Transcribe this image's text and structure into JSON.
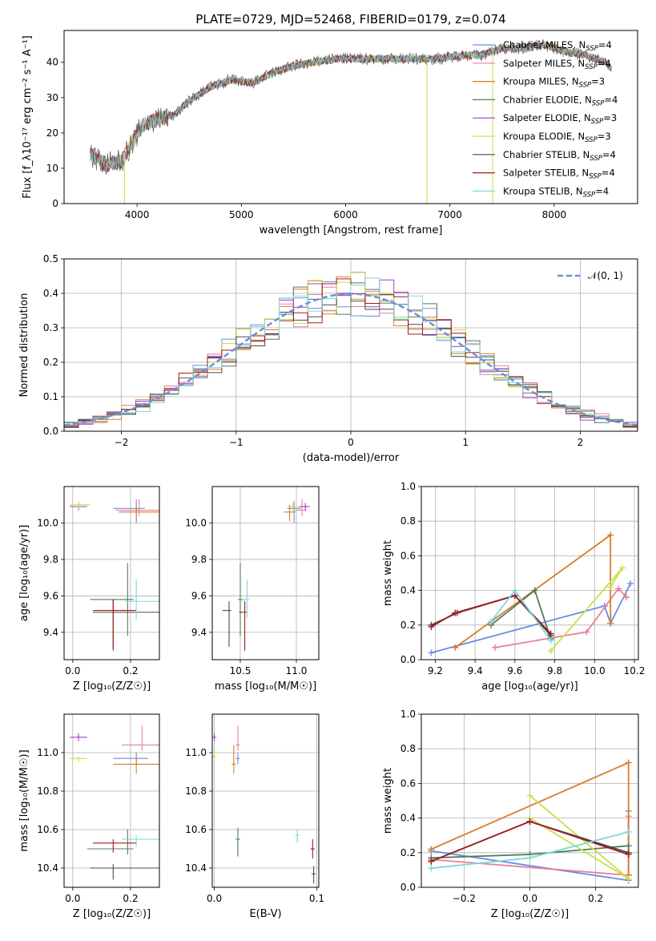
{
  "title": "PLATE=0729, MJD=52468, FIBERID=0179, z=0.074",
  "colors": {
    "Chabrier MILES": "#6a8ee0",
    "Salpeter MILES": "#e87f9a",
    "Kroupa MILES": "#d97d2a",
    "Chabrier ELODIE": "#4f7d5a",
    "Salpeter ELODIE": "#a23bc8",
    "Kroupa ELODIE": "#c8e04a",
    "Chabrier STELIB": "#4a4a4a",
    "Salpeter STELIB": "#a01c1c",
    "Kroupa STELIB": "#7fd8dc"
  },
  "chart_data": [
    {
      "id": "spectrum",
      "type": "line",
      "xlabel": "wavelength [Angstrom, rest frame]",
      "ylabel": "Flux [f_λ10⁻¹⁷ erg cm⁻² s⁻¹ A⁻¹]",
      "xlim": [
        3300,
        8800
      ],
      "ylim": [
        0,
        49
      ],
      "xticks": [
        4000,
        5000,
        6000,
        7000,
        8000
      ],
      "yticks": [
        0,
        10,
        20,
        30,
        40
      ],
      "grid": false,
      "legend_position": "right",
      "legend": [
        {
          "label": "Chabrier MILES, N",
          "sub": "SSP",
          "suffix": "=4"
        },
        {
          "label": "Salpeter MILES, N",
          "sub": "SSP",
          "suffix": "=4"
        },
        {
          "label": "Kroupa MILES, N",
          "sub": "SSP",
          "suffix": "=3"
        },
        {
          "label": "Chabrier ELODIE, N",
          "sub": "SSP",
          "suffix": "=4"
        },
        {
          "label": "Salpeter ELODIE, N",
          "sub": "SSP",
          "suffix": "=3"
        },
        {
          "label": "Kroupa ELODIE, N",
          "sub": "SSP",
          "suffix": "=3"
        },
        {
          "label": "Chabrier STELIB, N",
          "sub": "SSP",
          "suffix": "=4"
        },
        {
          "label": "Salpeter STELIB, N",
          "sub": "SSP",
          "suffix": "=4"
        },
        {
          "label": "Kroupa STELIB, N",
          "sub": "SSP",
          "suffix": "=4"
        }
      ],
      "continuum": [
        [
          3550,
          14
        ],
        [
          3700,
          11
        ],
        [
          3850,
          12
        ],
        [
          3950,
          17
        ],
        [
          4050,
          22
        ],
        [
          4200,
          24
        ],
        [
          4350,
          25
        ],
        [
          4500,
          29
        ],
        [
          4700,
          33
        ],
        [
          4900,
          35
        ],
        [
          5100,
          34
        ],
        [
          5300,
          37
        ],
        [
          5500,
          39
        ],
        [
          5700,
          40
        ],
        [
          5900,
          41
        ],
        [
          6100,
          41
        ],
        [
          6300,
          41
        ],
        [
          6500,
          41
        ],
        [
          6700,
          41
        ],
        [
          6900,
          41
        ],
        [
          7100,
          42
        ],
        [
          7300,
          42
        ],
        [
          7500,
          44
        ],
        [
          7700,
          44
        ],
        [
          7900,
          45
        ],
        [
          8100,
          43
        ],
        [
          8300,
          42
        ],
        [
          8500,
          40
        ],
        [
          8550,
          38
        ]
      ],
      "spikes": [
        [
          3880,
          0
        ],
        [
          6780,
          0
        ],
        [
          7410,
          0
        ]
      ]
    },
    {
      "id": "residuals",
      "type": "histogram",
      "xlabel": "(data-model)/error",
      "ylabel": "Normed distribution",
      "xlim": [
        -2.5,
        2.5
      ],
      "ylim": [
        0,
        0.5
      ],
      "xticks": [
        -2,
        -1,
        0,
        1,
        2
      ],
      "yticks": [
        0.0,
        0.1,
        0.2,
        0.3,
        0.4,
        0.5
      ],
      "grid": true,
      "legend_position": "top-right",
      "legend_label": "𝒩(0, 1)",
      "bin_width": 0.125,
      "reference": {
        "type": "normal",
        "mean": 0,
        "sigma": 1
      }
    },
    {
      "id": "age-vs-z",
      "type": "scatter",
      "xlabel": "Z [log₁₀(Z/Z☉)]",
      "ylabel": "age  [log₁₀(age/yr)]",
      "xlim": [
        -0.03,
        0.3
      ],
      "ylim": [
        9.25,
        10.2
      ],
      "xticks": [
        0.0,
        0.2
      ],
      "yticks": [
        9.4,
        9.6,
        9.8,
        10.0
      ],
      "grid": true,
      "points": [
        {
          "series": "Chabrier MILES",
          "x": 0.22,
          "xerr": [
            0.08,
            0.03
          ],
          "y": 10.08,
          "yerr": [
            0.08,
            0.05
          ]
        },
        {
          "series": "Salpeter MILES",
          "x": 0.23,
          "xerr": [
            0.08,
            0.07
          ],
          "y": 10.07,
          "yerr": [
            0.03,
            0.06
          ]
        },
        {
          "series": "Kroupa MILES",
          "x": 0.22,
          "xerr": [
            0.06,
            0.08
          ],
          "y": 10.06,
          "yerr": [
            0.05,
            0.04
          ]
        },
        {
          "series": "Chabrier ELODIE",
          "x": 0.19,
          "xerr": [
            0.13,
            0.02
          ],
          "y": 9.58,
          "yerr": [
            0.2,
            0.2
          ]
        },
        {
          "series": "Salpeter ELODIE",
          "x": 0.02,
          "xerr": [
            0.03,
            0.03
          ],
          "y": 10.09,
          "yerr": [
            0.02,
            0.02
          ]
        },
        {
          "series": "Kroupa ELODIE",
          "x": 0.02,
          "xerr": [
            0.03,
            0.04
          ],
          "y": 10.1,
          "yerr": [
            0.02,
            0.02
          ]
        },
        {
          "series": "Chabrier STELIB",
          "x": 0.14,
          "xerr": [
            0.07,
            0.16
          ],
          "y": 9.51,
          "yerr": [
            0.2,
            0.07
          ]
        },
        {
          "series": "Salpeter STELIB",
          "x": 0.14,
          "xerr": [
            0.07,
            0.08
          ],
          "y": 9.52,
          "yerr": [
            0.22,
            0.06
          ]
        },
        {
          "series": "Kroupa STELIB",
          "x": 0.22,
          "xerr": [
            0.04,
            0.08
          ],
          "y": 9.57,
          "yerr": [
            0.1,
            0.12
          ]
        }
      ]
    },
    {
      "id": "age-vs-mass",
      "type": "scatter",
      "xlabel": "mass [log₁₀(M/M☉)]",
      "ylabel": "",
      "xlim": [
        10.25,
        11.2
      ],
      "ylim": [
        9.25,
        10.2
      ],
      "xticks": [
        10.5,
        11.0
      ],
      "yticks": [
        9.4,
        9.6,
        9.8,
        10.0
      ],
      "grid": true,
      "points": [
        {
          "series": "Chabrier MILES",
          "x": 10.98,
          "xerr": [
            0.06,
            0.06
          ],
          "y": 10.08,
          "yerr": [
            0.08,
            0.04
          ]
        },
        {
          "series": "Salpeter MILES",
          "x": 11.05,
          "xerr": [
            0.06,
            0.04
          ],
          "y": 10.07,
          "yerr": [
            0.03,
            0.06
          ]
        },
        {
          "series": "Kroupa MILES",
          "x": 10.94,
          "xerr": [
            0.05,
            0.05
          ],
          "y": 10.06,
          "yerr": [
            0.05,
            0.04
          ]
        },
        {
          "series": "Chabrier ELODIE",
          "x": 10.5,
          "xerr": [
            0.02,
            0.06
          ],
          "y": 9.58,
          "yerr": [
            0.2,
            0.2
          ]
        },
        {
          "series": "Salpeter ELODIE",
          "x": 11.08,
          "xerr": [
            0.06,
            0.04
          ],
          "y": 10.09,
          "yerr": [
            0.02,
            0.02
          ]
        },
        {
          "series": "Kroupa ELODIE",
          "x": 10.97,
          "xerr": [
            0.05,
            0.04
          ],
          "y": 10.09,
          "yerr": [
            0.02,
            0.02
          ]
        },
        {
          "series": "Chabrier STELIB",
          "x": 10.4,
          "xerr": [
            0.06,
            0.02
          ],
          "y": 9.52,
          "yerr": [
            0.2,
            0.05
          ]
        },
        {
          "series": "Salpeter STELIB",
          "x": 10.54,
          "xerr": [
            0.05,
            0.02
          ],
          "y": 9.51,
          "yerr": [
            0.21,
            0.06
          ]
        },
        {
          "series": "Kroupa STELIB",
          "x": 10.56,
          "xerr": [
            0.04,
            0.02
          ],
          "y": 9.58,
          "yerr": [
            0.1,
            0.11
          ]
        }
      ]
    },
    {
      "id": "weight-vs-age",
      "type": "line",
      "xlabel": "age  [log₁₀(age/yr)]",
      "ylabel": "mass weight",
      "xlim": [
        9.13,
        10.22
      ],
      "ylim": [
        0,
        1.0
      ],
      "xticks": [
        9.2,
        9.4,
        9.6,
        9.8,
        10.0,
        10.2
      ],
      "yticks": [
        0.0,
        0.2,
        0.4,
        0.6,
        0.8,
        1.0
      ],
      "grid": true,
      "series": [
        {
          "name": "Chabrier MILES",
          "points": [
            [
              9.18,
              0.04
            ],
            [
              10.05,
              0.31
            ],
            [
              10.08,
              0.21
            ],
            [
              10.18,
              0.44
            ]
          ]
        },
        {
          "name": "Salpeter MILES",
          "points": [
            [
              9.5,
              0.07
            ],
            [
              9.96,
              0.16
            ],
            [
              10.12,
              0.41
            ],
            [
              10.16,
              0.36
            ]
          ]
        },
        {
          "name": "Kroupa MILES",
          "points": [
            [
              9.3,
              0.07
            ],
            [
              10.08,
              0.72
            ],
            [
              10.08,
              0.21
            ]
          ]
        },
        {
          "name": "Chabrier ELODIE",
          "points": [
            [
              9.48,
              0.2
            ],
            [
              9.7,
              0.4
            ],
            [
              9.78,
              0.12
            ]
          ]
        },
        {
          "name": "Kroupa ELODIE",
          "points": [
            [
              9.78,
              0.05
            ],
            [
              10.14,
              0.53
            ],
            [
              10.08,
              0.42
            ]
          ]
        },
        {
          "name": "Chabrier STELIB",
          "points": [
            [
              9.18,
              0.2
            ],
            [
              9.31,
              0.27
            ],
            [
              9.6,
              0.37
            ],
            [
              9.78,
              0.14
            ]
          ]
        },
        {
          "name": "Salpeter STELIB",
          "points": [
            [
              9.18,
              0.19
            ],
            [
              9.3,
              0.27
            ],
            [
              9.6,
              0.37
            ],
            [
              9.78,
              0.15
            ]
          ]
        },
        {
          "name": "Kroupa STELIB",
          "points": [
            [
              9.48,
              0.22
            ],
            [
              9.6,
              0.4
            ],
            [
              9.78,
              0.11
            ]
          ]
        }
      ]
    },
    {
      "id": "mass-vs-z",
      "type": "scatter",
      "xlabel": "Z [log₁₀(Z/Z☉)]",
      "ylabel": "mass [log₁₀(M/M☉)]",
      "xlim": [
        -0.03,
        0.3
      ],
      "ylim": [
        10.3,
        11.2
      ],
      "xticks": [
        0.0,
        0.2
      ],
      "yticks": [
        10.4,
        10.6,
        10.8,
        11.0
      ],
      "grid": true,
      "points": [
        {
          "series": "Chabrier MILES",
          "x": 0.22,
          "xerr": [
            0.08,
            0.04
          ],
          "y": 10.97,
          "yerr": [
            0.03,
            0.03
          ]
        },
        {
          "series": "Salpeter MILES",
          "x": 0.24,
          "xerr": [
            0.07,
            0.06
          ],
          "y": 11.04,
          "yerr": [
            0.03,
            0.1
          ]
        },
        {
          "series": "Kroupa MILES",
          "x": 0.22,
          "xerr": [
            0.08,
            0.1
          ],
          "y": 10.94,
          "yerr": [
            0.05,
            0.04
          ]
        },
        {
          "series": "Chabrier ELODIE",
          "x": 0.19,
          "xerr": [
            0.14,
            0.02
          ],
          "y": 10.5,
          "yerr": [
            0.03,
            0.1
          ]
        },
        {
          "series": "Salpeter ELODIE",
          "x": 0.02,
          "xerr": [
            0.03,
            0.03
          ],
          "y": 11.08,
          "yerr": [
            0.02,
            0.02
          ]
        },
        {
          "series": "Kroupa ELODIE",
          "x": 0.02,
          "xerr": [
            0.03,
            0.03
          ],
          "y": 10.97,
          "yerr": [
            0.02,
            0.01
          ]
        },
        {
          "series": "Chabrier STELIB",
          "x": 0.14,
          "xerr": [
            0.08,
            0.16
          ],
          "y": 10.4,
          "yerr": [
            0.06,
            0.02
          ]
        },
        {
          "series": "Salpeter STELIB",
          "x": 0.14,
          "xerr": [
            0.07,
            0.08
          ],
          "y": 10.53,
          "yerr": [
            0.05,
            0.02
          ]
        },
        {
          "series": "Kroupa STELIB",
          "x": 0.22,
          "xerr": [
            0.05,
            0.08
          ],
          "y": 10.55,
          "yerr": [
            0.04,
            0.02
          ]
        }
      ]
    },
    {
      "id": "mass-vs-ebv",
      "type": "scatter",
      "xlabel": "E(B-V)",
      "ylabel": "",
      "xlim": [
        -0.002,
        0.102
      ],
      "ylim": [
        10.3,
        11.2
      ],
      "xticks": [
        0.0,
        0.1
      ],
      "yticks": [
        10.4,
        10.6,
        10.8,
        11.0
      ],
      "grid": true,
      "points": [
        {
          "series": "Chabrier MILES",
          "x": 0.023,
          "y": 10.97,
          "yerr": [
            0.03,
            0.03
          ]
        },
        {
          "series": "Salpeter MILES",
          "x": 0.023,
          "y": 11.04,
          "yerr": [
            0.03,
            0.1
          ]
        },
        {
          "series": "Kroupa MILES",
          "x": 0.019,
          "y": 10.94,
          "yerr": [
            0.05,
            0.1
          ]
        },
        {
          "series": "Chabrier ELODIE",
          "x": 0.023,
          "y": 10.55,
          "yerr": [
            0.09,
            0.06
          ]
        },
        {
          "series": "Salpeter ELODIE",
          "x": 0.0,
          "y": 11.08,
          "yerr": [
            0.02,
            0.02
          ]
        },
        {
          "series": "Kroupa ELODIE",
          "x": 0.0,
          "y": 10.98,
          "yerr": [
            0.02,
            0.02
          ]
        },
        {
          "series": "Chabrier STELIB",
          "x": 0.097,
          "y": 10.37,
          "yerr": [
            0.05,
            0.04
          ]
        },
        {
          "series": "Salpeter STELIB",
          "x": 0.096,
          "y": 10.5,
          "yerr": [
            0.05,
            0.05
          ]
        },
        {
          "series": "Kroupa STELIB",
          "x": 0.081,
          "y": 10.57,
          "yerr": [
            0.04,
            0.03
          ]
        }
      ]
    },
    {
      "id": "weight-vs-z",
      "type": "line",
      "xlabel": "Z [log₁₀(Z/Z☉)]",
      "ylabel": "mass weight",
      "xlim": [
        -0.33,
        0.33
      ],
      "ylim": [
        0,
        1.0
      ],
      "xticks": [
        -0.2,
        0.0,
        0.2
      ],
      "yticks": [
        0.0,
        0.2,
        0.4,
        0.6,
        0.8,
        1.0
      ],
      "grid": true,
      "series": [
        {
          "name": "Chabrier MILES",
          "points": [
            [
              -0.3,
              0.21
            ],
            [
              0.3,
              0.04
            ],
            [
              0.3,
              0.44
            ]
          ]
        },
        {
          "name": "Salpeter MILES",
          "points": [
            [
              -0.3,
              0.16
            ],
            [
              0.3,
              0.07
            ],
            [
              0.3,
              0.41
            ]
          ]
        },
        {
          "name": "Kroupa MILES",
          "points": [
            [
              -0.3,
              0.22
            ],
            [
              0.3,
              0.72
            ],
            [
              0.3,
              0.07
            ]
          ]
        },
        {
          "name": "Chabrier ELODIE",
          "points": [
            [
              -0.3,
              0.17
            ],
            [
              0.0,
              0.19
            ],
            [
              0.3,
              0.24
            ]
          ]
        },
        {
          "name": "Kroupa ELODIE",
          "points": [
            [
              0.0,
              0.53
            ],
            [
              0.3,
              0.05
            ],
            [
              0.0,
              0.4
            ]
          ]
        },
        {
          "name": "Chabrier STELIB",
          "points": [
            [
              -0.3,
              0.15
            ],
            [
              0.0,
              0.38
            ],
            [
              0.3,
              0.2
            ]
          ]
        },
        {
          "name": "Salpeter STELIB",
          "points": [
            [
              -0.3,
              0.15
            ],
            [
              0.0,
              0.38
            ],
            [
              0.3,
              0.19
            ]
          ]
        },
        {
          "name": "Kroupa STELIB",
          "points": [
            [
              -0.3,
              0.11
            ],
            [
              0.0,
              0.17
            ],
            [
              0.3,
              0.32
            ]
          ]
        }
      ]
    }
  ]
}
